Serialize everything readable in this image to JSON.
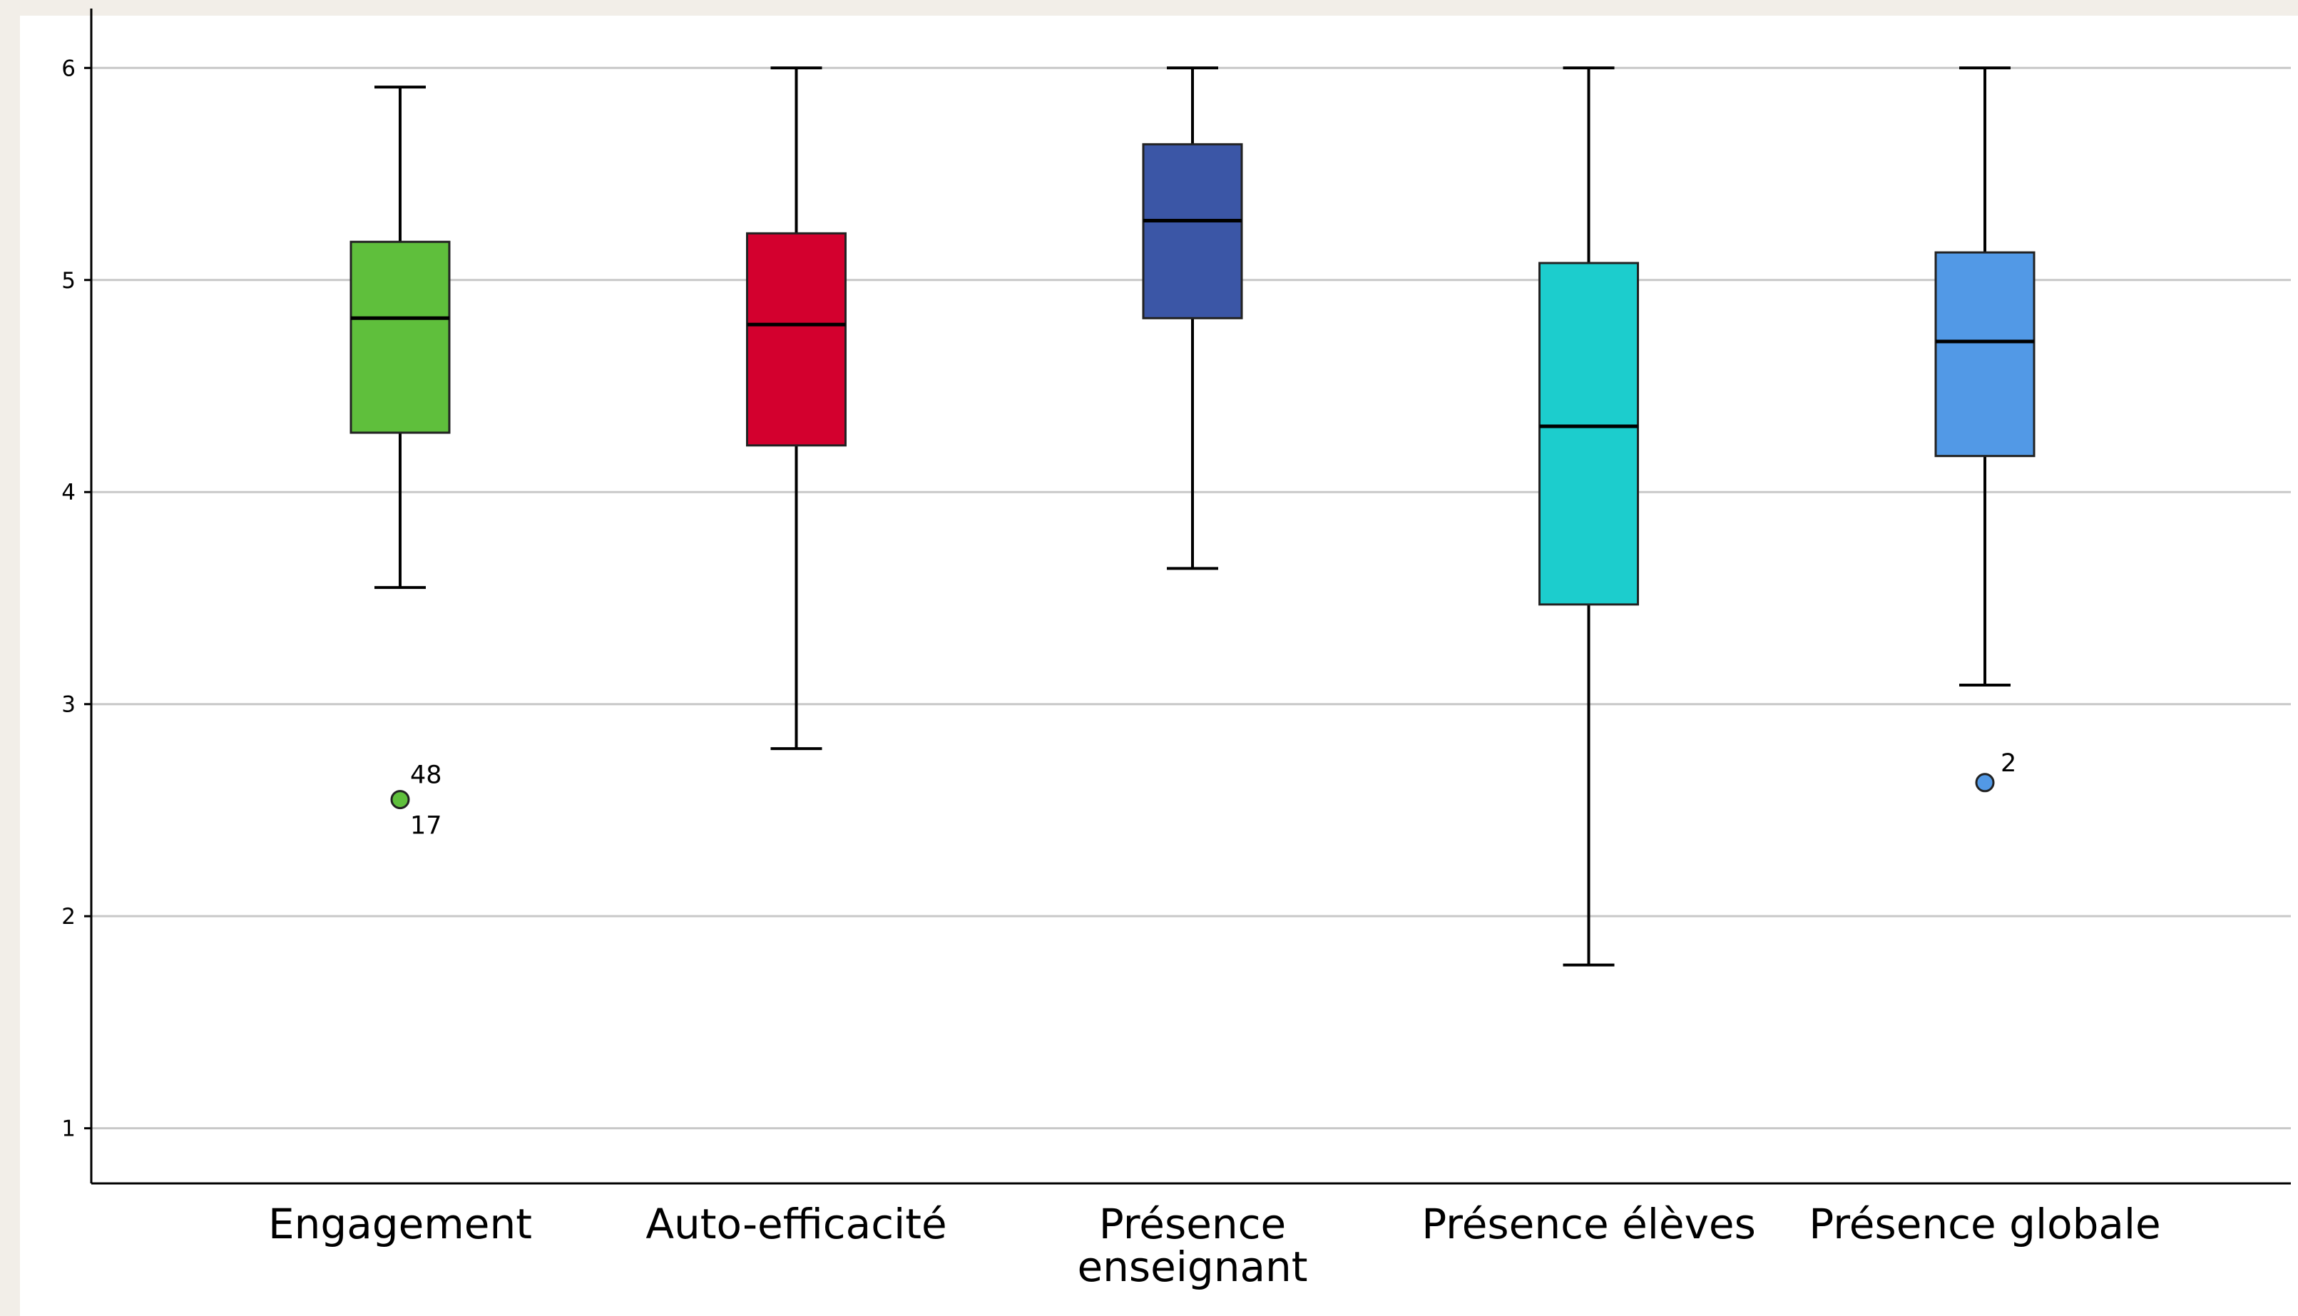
{
  "chart_data": {
    "type": "boxplot",
    "categories": [
      "Engagement",
      "Auto-efficacité",
      "Présence enseignant",
      "Présence élèves",
      "Présence globale"
    ],
    "category_label_lines": [
      [
        "Engagement"
      ],
      [
        "Auto-efficacité"
      ],
      [
        "Présence",
        "enseignant"
      ],
      [
        "Présence élèves"
      ],
      [
        "Présence globale"
      ]
    ],
    "boxes": [
      {
        "min": 3.55,
        "q1": 4.28,
        "median": 4.82,
        "q3": 5.18,
        "max": 5.91,
        "color": "#5fbf3c",
        "outliers": [
          {
            "value": 2.55,
            "labels": [
              "48",
              "17"
            ]
          }
        ]
      },
      {
        "min": 2.79,
        "q1": 4.22,
        "median": 4.79,
        "q3": 5.22,
        "max": 6.0,
        "color": "#d3002e",
        "outliers": []
      },
      {
        "min": 3.64,
        "q1": 4.82,
        "median": 5.28,
        "q3": 5.64,
        "max": 6.0,
        "color": "#3b56a6",
        "outliers": []
      },
      {
        "min": 1.77,
        "q1": 3.47,
        "median": 4.31,
        "q3": 5.08,
        "max": 6.0,
        "color": "#1ccdcd",
        "outliers": []
      },
      {
        "min": 3.09,
        "q1": 4.17,
        "median": 4.71,
        "q3": 5.13,
        "max": 6.0,
        "color": "#5299e6",
        "outliers": [
          {
            "value": 2.63,
            "labels": [
              "2"
            ]
          }
        ]
      }
    ],
    "yticks": [
      1,
      2,
      3,
      4,
      5,
      6
    ],
    "ylim": [
      0.74,
      6.28
    ],
    "grid": true,
    "xlabel": "",
    "ylabel": ""
  }
}
